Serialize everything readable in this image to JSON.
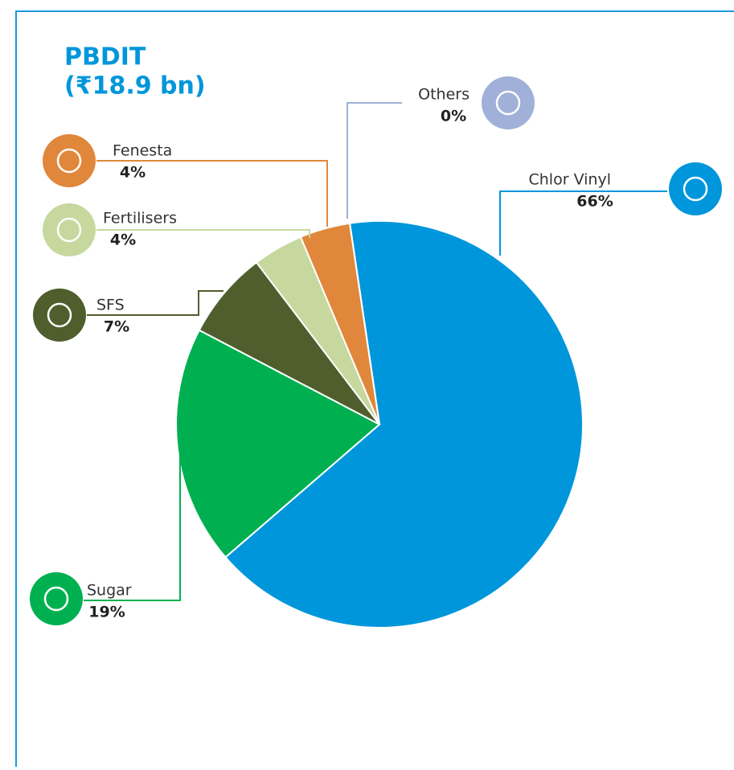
{
  "chart_data": {
    "type": "pie",
    "title": "PBDIT",
    "subtitle": "(₹18.9 bn)",
    "categories": [
      "Chlor Vinyl",
      "Sugar",
      "SFS",
      "Fertilisers",
      "Fenesta",
      "Others"
    ],
    "values": [
      66,
      19,
      7,
      4,
      4,
      0
    ],
    "value_labels": [
      "66%",
      "19%",
      "7%",
      "4%",
      "4%",
      "0%"
    ],
    "colors": [
      "#0096db",
      "#00b050",
      "#4f5e2c",
      "#c6d89e",
      "#e0873b",
      "#a0b0d8"
    ]
  }
}
